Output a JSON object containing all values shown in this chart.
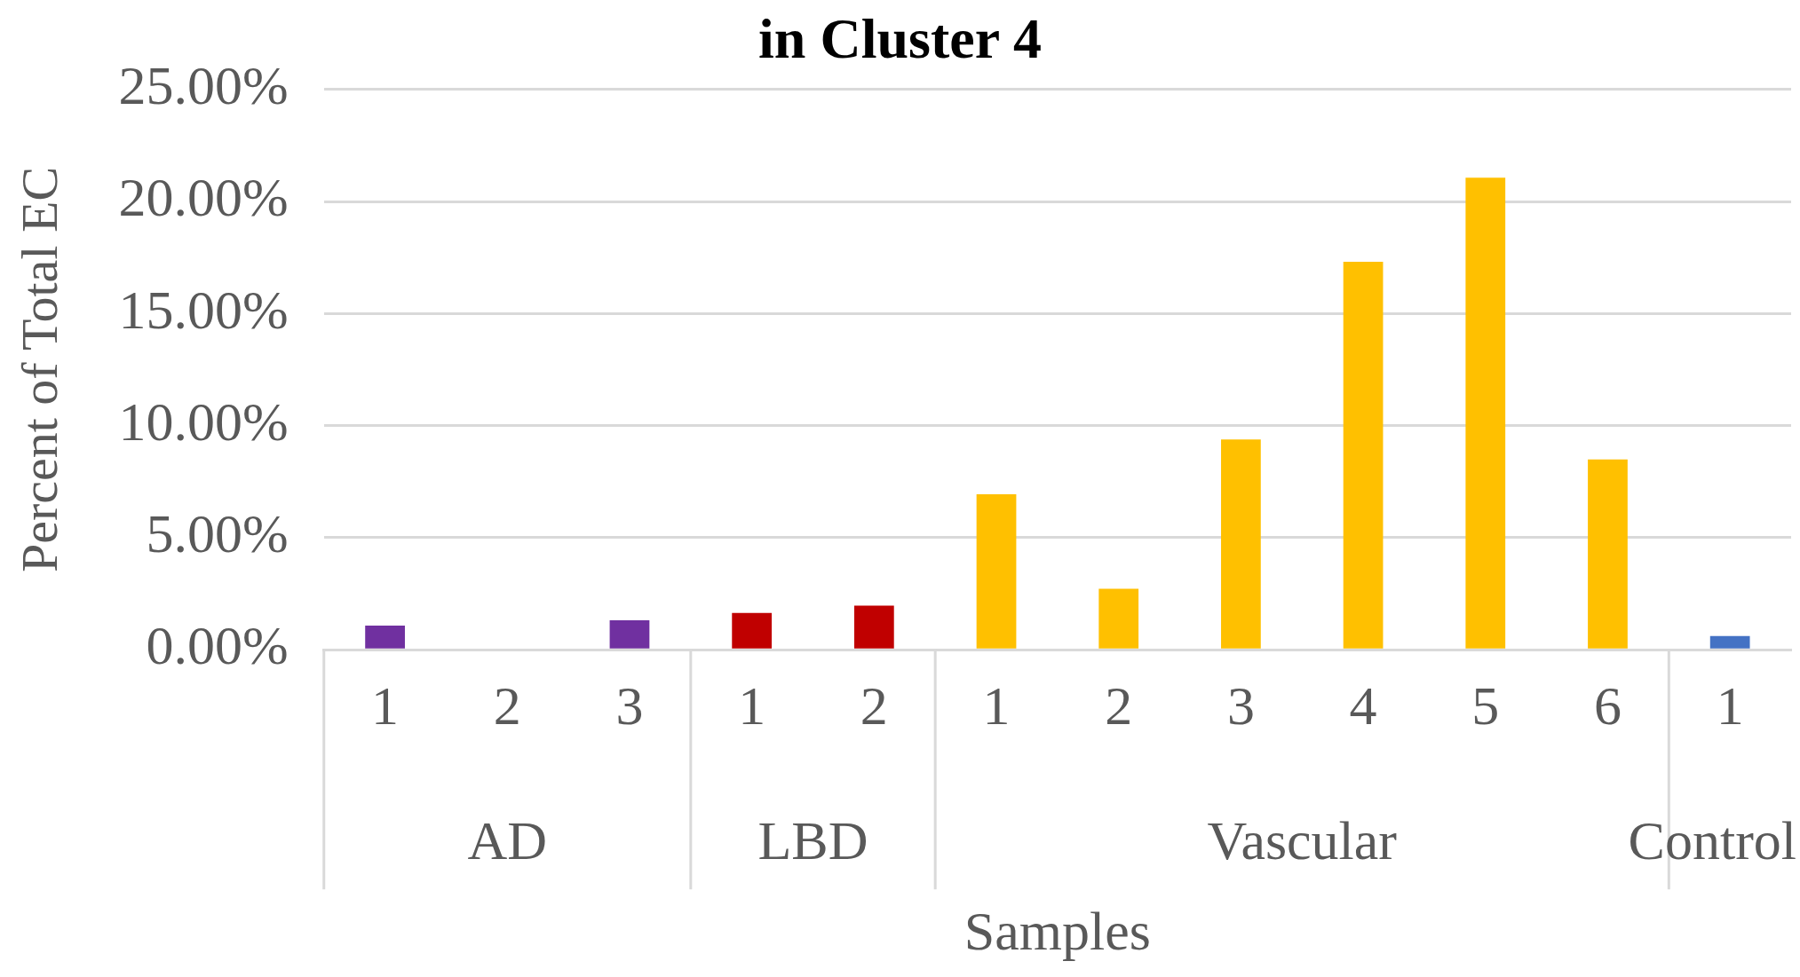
{
  "chart_data": {
    "type": "bar",
    "title": "in Cluster 4",
    "xlabel": "Samples",
    "ylabel": "Percent of Total EC",
    "categories": [
      "1",
      "2",
      "3",
      "1",
      "2",
      "1",
      "2",
      "3",
      "4",
      "5",
      "6",
      "1"
    ],
    "values": [
      1.08,
      0,
      1.31,
      1.64,
      1.97,
      6.94,
      2.72,
      9.38,
      17.31,
      21.06,
      8.49,
      0.61
    ],
    "colors": [
      "#7030a0",
      "#7030a0",
      "#7030a0",
      "#c00000",
      "#c00000",
      "#ffc000",
      "#ffc000",
      "#ffc000",
      "#ffc000",
      "#ffc000",
      "#ffc000",
      "#4472c4"
    ],
    "annotations": [
      "AD",
      "LBD",
      "Vascular",
      "Control"
    ],
    "ylim": [
      0,
      25
    ],
    "yticks": [
      {
        "value": 0,
        "label": "0.00%"
      },
      {
        "value": 5,
        "label": "5.00%"
      },
      {
        "value": 10,
        "label": "10.00%"
      },
      {
        "value": 15,
        "label": "15.00%"
      },
      {
        "value": 20,
        "label": "20.00%"
      },
      {
        "value": 25,
        "label": "25.00%"
      }
    ],
    "grid": "y",
    "legend": false
  }
}
